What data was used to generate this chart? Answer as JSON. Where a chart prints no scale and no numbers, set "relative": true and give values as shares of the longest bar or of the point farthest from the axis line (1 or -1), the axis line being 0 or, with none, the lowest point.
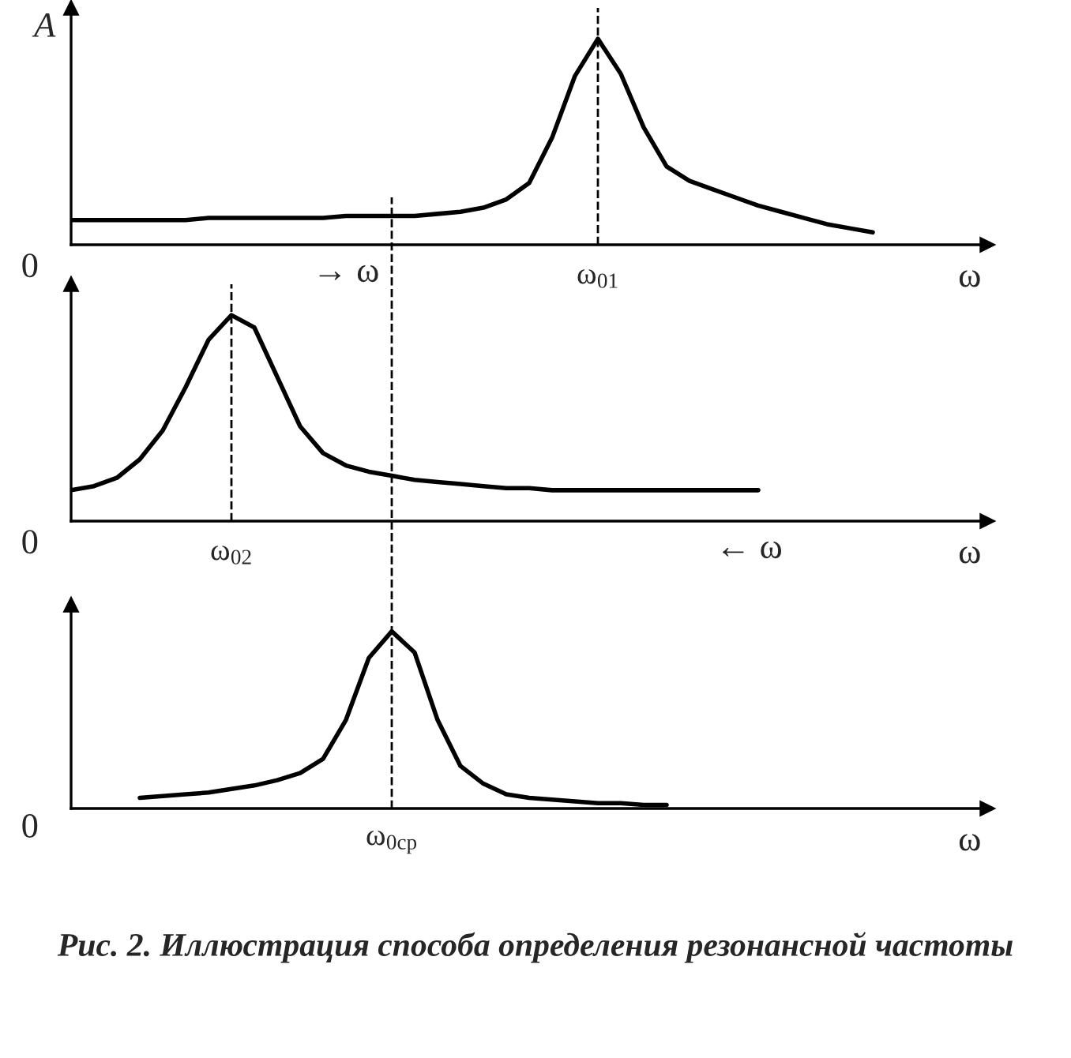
{
  "chart_data": [
    {
      "type": "line",
      "relative": true,
      "ylabel": "A",
      "xlabel": "ω",
      "line_style": "solid",
      "categories": [
        null,
        null,
        null,
        null,
        null,
        null,
        null,
        null,
        null,
        null,
        null,
        null,
        null,
        null,
        null,
        null,
        null,
        null,
        null,
        null,
        null,
        null,
        null,
        null,
        null,
        null,
        null,
        null,
        null,
        null,
        null,
        null,
        null,
        null,
        null,
        null,
        null,
        null,
        null,
        null,
        null
      ],
      "series": [
        {
          "color": "#000000",
          "values": [
            0.12,
            0.12,
            0.12,
            0.12,
            0.12,
            0.12,
            0.13,
            0.13,
            0.13,
            0.13,
            0.13,
            0.13,
            0.14,
            0.14,
            0.14,
            0.14,
            0.15,
            0.16,
            0.18,
            0.22,
            0.3,
            0.52,
            0.82,
            1.0,
            0.83,
            0.57,
            0.38,
            0.31,
            0.27,
            0.23,
            0.19,
            0.16,
            0.13,
            0.1,
            0.08,
            0.06,
            null,
            null,
            null,
            null,
            null
          ]
        }
      ],
      "ref_lines": [
        {
          "axis": "x",
          "label": "ω$_{01}$",
          "line_style": "dashed",
          "color": "#000000"
        }
      ],
      "annotations": [
        "0",
        "→ ω"
      ]
    },
    {
      "type": "line",
      "relative": true,
      "xlabel": "ω",
      "line_style": "solid",
      "categories": [
        null,
        null,
        null,
        null,
        null,
        null,
        null,
        null,
        null,
        null,
        null,
        null,
        null,
        null,
        null,
        null,
        null,
        null,
        null,
        null,
        null,
        null,
        null,
        null,
        null,
        null,
        null,
        null,
        null,
        null,
        null,
        null,
        null,
        null,
        null,
        null,
        null,
        null,
        null,
        null,
        null
      ],
      "series": [
        {
          "color": "#000000",
          "values": [
            0.15,
            0.17,
            0.21,
            0.3,
            0.44,
            0.65,
            0.88,
            1.0,
            0.94,
            0.7,
            0.46,
            0.33,
            0.27,
            0.24,
            0.22,
            0.2,
            0.19,
            0.18,
            0.17,
            0.16,
            0.16,
            0.15,
            0.15,
            0.15,
            0.15,
            0.15,
            0.15,
            0.15,
            0.15,
            0.15,
            0.15,
            null,
            null,
            null,
            null,
            null,
            null,
            null,
            null,
            null,
            null
          ]
        }
      ],
      "ref_lines": [
        {
          "axis": "x",
          "label": "ω$_{02}$",
          "line_style": "dashed",
          "color": "#000000"
        }
      ],
      "annotations": [
        "0",
        "← ω"
      ]
    },
    {
      "type": "line",
      "relative": true,
      "xlabel": "ω",
      "line_style": "solid",
      "title": "Рис. 2. Иллюстрация способа определения резонансной частоты",
      "categories": [
        null,
        null,
        null,
        null,
        null,
        null,
        null,
        null,
        null,
        null,
        null,
        null,
        null,
        null,
        null,
        null,
        null,
        null,
        null,
        null,
        null,
        null,
        null,
        null,
        null,
        null,
        null,
        null,
        null,
        null,
        null,
        null,
        null,
        null,
        null,
        null,
        null,
        null,
        null,
        null,
        null
      ],
      "series": [
        {
          "color": "#000000",
          "values": [
            null,
            null,
            null,
            0.06,
            0.07,
            0.08,
            0.09,
            0.11,
            0.13,
            0.16,
            0.2,
            0.28,
            0.5,
            0.85,
            1.0,
            0.88,
            0.5,
            0.24,
            0.14,
            0.08,
            0.06,
            0.05,
            0.04,
            0.03,
            0.03,
            0.02,
            0.02,
            null,
            null,
            null,
            null,
            null,
            null,
            null,
            null,
            null,
            null,
            null,
            null,
            null,
            null
          ]
        }
      ],
      "ref_lines": [
        {
          "axis": "x",
          "label": "ω$_{0ср}$",
          "line_style": "dashed",
          "color": "#000000"
        }
      ],
      "annotations": [
        "0"
      ]
    }
  ]
}
